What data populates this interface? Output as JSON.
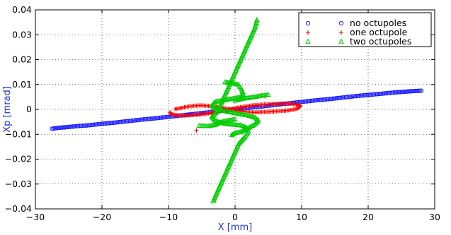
{
  "chart_data": {
    "type": "scatter",
    "title": "",
    "xlabel": "X [mm]",
    "ylabel": "Xp [mrad]",
    "xlim": [
      -30,
      30
    ],
    "ylim": [
      -0.04,
      0.04
    ],
    "xticks": [
      -30,
      -20,
      -10,
      0,
      10,
      20,
      30
    ],
    "yticks": [
      -0.04,
      -0.03,
      -0.02,
      -0.01,
      0,
      0.01,
      0.02,
      0.03,
      0.04
    ],
    "xtick_labels": [
      "−30",
      "−20",
      "−10",
      "0",
      "10",
      "20",
      "30"
    ],
    "ytick_labels": [
      "−0.04",
      "−0.03",
      "−0.02",
      "−0.01",
      "0",
      "0.01",
      "0.02",
      "0.03",
      "0.04"
    ],
    "grid": true,
    "grid_style": "dotted",
    "legend_position": "top-right",
    "axis_label_color": "#2233cc",
    "series": [
      {
        "name": "no octupoles",
        "marker": "circle",
        "color": "#1a1aff",
        "points": [
          [
            -27.5,
            -0.0078
          ],
          [
            -26.5,
            -0.0074
          ],
          [
            -25.5,
            -0.0072
          ],
          [
            -24,
            -0.0068
          ],
          [
            -22,
            -0.0064
          ],
          [
            -20,
            -0.0058
          ],
          [
            -18,
            -0.0053
          ],
          [
            -16,
            -0.0047
          ],
          [
            -14,
            -0.0041
          ],
          [
            -12,
            -0.0036
          ],
          [
            -10,
            -0.003
          ],
          [
            -8,
            -0.0024
          ],
          [
            -6,
            -0.0018
          ],
          [
            -4,
            -0.0012
          ],
          [
            -2,
            -0.0006
          ],
          [
            0,
            0.0
          ],
          [
            2,
            0.0006
          ],
          [
            4,
            0.0012
          ],
          [
            6,
            0.0018
          ],
          [
            8,
            0.0024
          ],
          [
            10,
            0.003
          ],
          [
            12,
            0.0036
          ],
          [
            14,
            0.0041
          ],
          [
            16,
            0.0047
          ],
          [
            18,
            0.0053
          ],
          [
            20,
            0.0058
          ],
          [
            22,
            0.0063
          ],
          [
            24,
            0.0068
          ],
          [
            25.5,
            0.0071
          ],
          [
            26.5,
            0.0073
          ],
          [
            28,
            0.0075
          ]
        ]
      },
      {
        "name": "one octupole",
        "marker": "plus",
        "color": "#ff0000",
        "points": [
          [
            -9.8,
            -0.0012
          ],
          [
            -9.5,
            -0.0019
          ],
          [
            -9,
            -0.0023
          ],
          [
            -8,
            -0.0025
          ],
          [
            -7,
            -0.0024
          ],
          [
            -6,
            -0.0022
          ],
          [
            -5,
            -0.002
          ],
          [
            -4,
            -0.0016
          ],
          [
            -3,
            -0.0011
          ],
          [
            -2,
            -0.0005
          ],
          [
            -1,
            0.0
          ],
          [
            0,
            0.0005
          ],
          [
            1,
            0.001
          ],
          [
            2,
            0.0014
          ],
          [
            3,
            0.0017
          ],
          [
            4,
            0.0019
          ],
          [
            5,
            0.0021
          ],
          [
            6,
            0.0022
          ],
          [
            7,
            0.0023
          ],
          [
            8,
            0.0023
          ],
          [
            9,
            0.0021
          ],
          [
            9.8,
            0.0015
          ],
          [
            9.5,
            0.0005
          ],
          [
            9,
            0.0
          ],
          [
            8,
            -0.0004
          ],
          [
            7,
            -0.0006
          ],
          [
            6,
            -0.0008
          ],
          [
            5,
            -0.001
          ],
          [
            4,
            -0.0011
          ],
          [
            3,
            -0.0012
          ],
          [
            2,
            -0.0011
          ],
          [
            1,
            -0.0008
          ],
          [
            0,
            -0.0003
          ],
          [
            -1,
            0.0002
          ],
          [
            -2,
            0.0007
          ],
          [
            -3,
            0.0011
          ],
          [
            -4,
            0.0014
          ],
          [
            -5,
            0.0016
          ],
          [
            -6,
            0.0015
          ],
          [
            -7,
            0.0012
          ],
          [
            -8,
            0.0006
          ],
          [
            -9,
            0.0002
          ],
          [
            -5.8,
            -0.0085
          ],
          [
            4.5,
            0.0052
          ]
        ]
      },
      {
        "name": "two octupoles",
        "marker": "triangle",
        "color": "#00cc00",
        "points": [
          [
            3.3,
            0.036
          ],
          [
            3,
            0.033
          ],
          [
            2.5,
            0.03
          ],
          [
            2,
            0.027
          ],
          [
            1.5,
            0.024
          ],
          [
            1,
            0.021
          ],
          [
            0.5,
            0.018
          ],
          [
            0,
            0.015
          ],
          [
            -0.5,
            0.012
          ],
          [
            -1,
            0.009
          ],
          [
            -1.5,
            0.006
          ],
          [
            -2,
            0.003
          ],
          [
            -2.5,
            0.0
          ],
          [
            -3,
            -0.002
          ],
          [
            -3.5,
            -0.003
          ],
          [
            -3,
            -0.0045
          ],
          [
            -2,
            -0.0055
          ],
          [
            -1,
            -0.006
          ],
          [
            0,
            -0.0062
          ],
          [
            1,
            -0.0065
          ],
          [
            1.8,
            -0.0075
          ],
          [
            2,
            -0.009
          ],
          [
            1.5,
            -0.011
          ],
          [
            1,
            -0.0125
          ],
          [
            0.5,
            -0.014
          ],
          [
            0,
            -0.017
          ],
          [
            -0.5,
            -0.02
          ],
          [
            -1,
            -0.023
          ],
          [
            -1.5,
            -0.026
          ],
          [
            -2,
            -0.029
          ],
          [
            -2.5,
            -0.032
          ],
          [
            -3,
            -0.035
          ],
          [
            -3.3,
            -0.037
          ],
          [
            -1.5,
            0.011
          ],
          [
            -0.5,
            0.0105
          ],
          [
            0.5,
            0.01
          ],
          [
            1,
            0.008
          ],
          [
            1.2,
            0.0065
          ],
          [
            1,
            0.005
          ],
          [
            0,
            0.0045
          ],
          [
            -1,
            0.004
          ],
          [
            -2,
            0.0035
          ],
          [
            -3,
            0.003
          ],
          [
            -3.5,
            0.0015
          ],
          [
            -3,
            0.0003
          ],
          [
            -2,
            -0.0005
          ],
          [
            -1,
            -0.001
          ],
          [
            0,
            -0.0015
          ],
          [
            1,
            -0.002
          ],
          [
            2,
            -0.0025
          ],
          [
            3,
            -0.0033
          ],
          [
            3.5,
            -0.0045
          ],
          [
            3,
            -0.006
          ],
          [
            2,
            -0.0075
          ],
          [
            1,
            -0.009
          ],
          [
            0,
            -0.0095
          ],
          [
            -0.5,
            -0.0103
          ],
          [
            0,
            0.0035
          ],
          [
            1,
            0.0042
          ],
          [
            2,
            0.0046
          ],
          [
            3,
            0.005
          ],
          [
            4,
            0.0055
          ],
          [
            5,
            0.0058
          ],
          [
            0,
            -0.004
          ],
          [
            -1,
            -0.0045
          ],
          [
            -2,
            -0.005
          ],
          [
            -3,
            -0.0062
          ],
          [
            -4,
            -0.0068
          ],
          [
            -5.4,
            -0.0066
          ]
        ]
      }
    ]
  }
}
